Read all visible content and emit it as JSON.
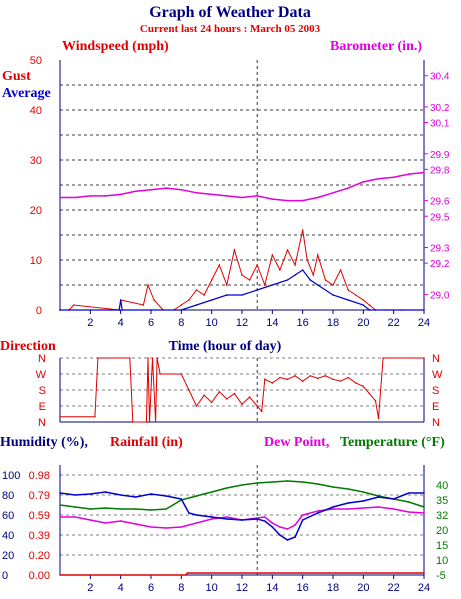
{
  "title": "Graph of Weather Data",
  "subtitle": "Current last 24 hours : March 05 2003",
  "colors": {
    "navy": "#000080",
    "red": "#e00000",
    "magenta": "#e000e0",
    "green": "#007a00",
    "blue": "#0000d0"
  },
  "chart_data": [
    {
      "type": "line",
      "name": "wind-and-barometer",
      "left_axis_label": "Windspeed (mph)",
      "right_axis_label": "Barometer (in.)",
      "xlabel": "Time (hour of day)",
      "legend_gust": "Gust",
      "legend_average": "Average",
      "xlim": [
        0,
        24
      ],
      "x_ticks": [
        "2",
        "4",
        "6",
        "8",
        "10",
        "12",
        "14",
        "16",
        "18",
        "20",
        "22",
        "24"
      ],
      "left_ylim": [
        0,
        50
      ],
      "left_ticks": [
        "0",
        "10",
        "20",
        "30",
        "40",
        "50"
      ],
      "right_ylim": [
        28.9,
        30.5
      ],
      "right_ticks": [
        "29.0",
        "29.2",
        "29.3",
        "29.5",
        "29.6",
        "29.8",
        "29.9",
        "30.1",
        "30.2",
        "30.4"
      ],
      "series": [
        {
          "name": "Gust",
          "x": [
            0,
            0.6,
            0.9,
            3.9,
            4.0,
            5.5,
            5.8,
            6.2,
            6.8,
            7.5,
            8.0,
            8.5,
            9.0,
            9.5,
            10.0,
            10.5,
            11.0,
            11.5,
            12.0,
            12.5,
            13.0,
            13.5,
            14.0,
            14.5,
            15.0,
            15.5,
            16.0,
            16.3,
            16.7,
            17.0,
            17.5,
            18.0,
            18.5,
            19.0,
            19.5,
            20.0,
            20.4,
            20.8,
            21.5,
            22.5,
            24.0
          ],
          "y": [
            0,
            0,
            1,
            0,
            2,
            1,
            5,
            2,
            0,
            0,
            1,
            2,
            4,
            3,
            6,
            9,
            5,
            12,
            7,
            6,
            9,
            5,
            11,
            8,
            12,
            9,
            16,
            10,
            7,
            11,
            6,
            5,
            8,
            4,
            3,
            2,
            1,
            0,
            0,
            0,
            0
          ]
        },
        {
          "name": "Average",
          "x": [
            0,
            3.9,
            4.0,
            4.1,
            6.0,
            8.0,
            9.0,
            10.0,
            11.0,
            12.0,
            13.0,
            14.0,
            15.0,
            15.5,
            16.0,
            16.5,
            17.0,
            18.0,
            19.0,
            20.0,
            20.4,
            24.0
          ],
          "y": [
            0,
            0,
            2,
            0,
            0,
            0,
            1,
            2,
            3,
            3,
            4,
            5,
            6,
            7,
            8,
            6,
            5,
            3,
            2,
            1,
            0,
            0
          ]
        },
        {
          "name": "Barometer",
          "x": [
            0,
            1,
            2,
            3,
            4,
            5,
            6,
            7,
            8,
            9,
            10,
            11,
            12,
            13,
            14,
            15,
            16,
            17,
            18,
            19,
            20,
            21,
            22,
            23,
            24
          ],
          "y": [
            29.62,
            29.62,
            29.63,
            29.63,
            29.64,
            29.66,
            29.67,
            29.68,
            29.67,
            29.65,
            29.64,
            29.63,
            29.62,
            29.63,
            29.61,
            29.6,
            29.6,
            29.62,
            29.65,
            29.68,
            29.72,
            29.74,
            29.75,
            29.77,
            29.78
          ]
        }
      ]
    },
    {
      "type": "line",
      "name": "wind-direction",
      "ylabel": "Direction",
      "xlim": [
        0,
        24
      ],
      "categories": [
        "N",
        "W",
        "S",
        "E",
        "N"
      ],
      "ylim": [
        0,
        360
      ],
      "series": [
        {
          "name": "Direction",
          "x": [
            0,
            2.3,
            2.5,
            4.6,
            4.8,
            5.7,
            5.8,
            5.9,
            6.1,
            6.3,
            6.4,
            6.6,
            8.0,
            8.5,
            9.0,
            9.5,
            10.0,
            10.5,
            11.0,
            11.5,
            12.0,
            12.5,
            13.0,
            13.3,
            13.5,
            14.0,
            14.5,
            15.0,
            15.5,
            16.0,
            16.5,
            17.0,
            17.5,
            18.0,
            18.5,
            19.0,
            19.5,
            20.0,
            20.4,
            20.8,
            21.0,
            21.3,
            24.0
          ],
          "y": [
            30,
            30,
            360,
            360,
            0,
            0,
            360,
            0,
            360,
            0,
            360,
            270,
            270,
            180,
            90,
            150,
            110,
            170,
            130,
            160,
            100,
            140,
            90,
            60,
            240,
            220,
            250,
            240,
            260,
            230,
            260,
            245,
            260,
            240,
            230,
            250,
            220,
            200,
            160,
            120,
            20,
            360,
            360
          ]
        }
      ]
    },
    {
      "type": "line",
      "name": "humidity-temperature",
      "legend_humidity": "Humidity (%),",
      "legend_rainfall": "Rainfall (in)",
      "legend_dewpoint": "Dew Point,",
      "legend_temperature": "Temperature (°F)",
      "xlim": [
        0,
        24
      ],
      "x_ticks": [
        "2",
        "4",
        "6",
        "8",
        "10",
        "12",
        "14",
        "16",
        "18",
        "20",
        "22",
        "24"
      ],
      "humidity_ticks": [
        "0",
        "20",
        "40",
        "60",
        "80",
        "100"
      ],
      "rainfall_ticks": [
        "0.00",
        "0.20",
        "0.39",
        "0.59",
        "0.79",
        "0.98"
      ],
      "temperature_ticks": [
        "-5",
        "10",
        "15",
        "20",
        "32",
        "35",
        "40"
      ],
      "series": [
        {
          "name": "Humidity",
          "x": [
            0,
            1,
            2,
            3,
            4,
            5,
            6,
            7,
            8,
            8.5,
            9,
            10,
            11,
            12,
            13,
            13.5,
            14,
            14.5,
            15,
            15.5,
            16,
            17,
            18,
            19,
            20,
            21,
            22,
            23,
            24
          ],
          "y": [
            82,
            80,
            81,
            83,
            80,
            78,
            81,
            79,
            76,
            62,
            60,
            58,
            56,
            55,
            56,
            54,
            48,
            40,
            35,
            38,
            55,
            62,
            68,
            72,
            74,
            78,
            76,
            82,
            82
          ]
        },
        {
          "name": "Rainfall",
          "x": [
            0,
            8.3,
            8.4,
            24
          ],
          "y": [
            0.0,
            0.0,
            0.02,
            0.02
          ]
        },
        {
          "name": "Dew Point",
          "x": [
            0,
            1,
            2,
            3,
            4,
            5,
            6,
            7,
            8,
            9,
            10,
            11,
            12,
            13,
            13.5,
            14,
            14.5,
            15,
            15.5,
            16,
            17,
            18,
            19,
            20,
            21,
            22,
            23,
            24
          ],
          "y": [
            58,
            58,
            55,
            52,
            54,
            51,
            48,
            47,
            48,
            52,
            56,
            58,
            55,
            57,
            58,
            52,
            48,
            46,
            50,
            60,
            64,
            66,
            66,
            67,
            68,
            66,
            63,
            62
          ]
        },
        {
          "name": "Temperature",
          "x": [
            0,
            1,
            2,
            3,
            4,
            5,
            6,
            7,
            8,
            9,
            10,
            11,
            12,
            13,
            14,
            15,
            16,
            17,
            18,
            19,
            20,
            21,
            22,
            23,
            24
          ],
          "y": [
            70,
            68,
            66,
            67,
            66,
            66,
            65,
            66,
            75,
            79,
            83,
            87,
            90,
            92,
            93,
            94,
            93,
            91,
            88,
            86,
            83,
            79,
            76,
            73,
            68
          ]
        }
      ]
    }
  ]
}
